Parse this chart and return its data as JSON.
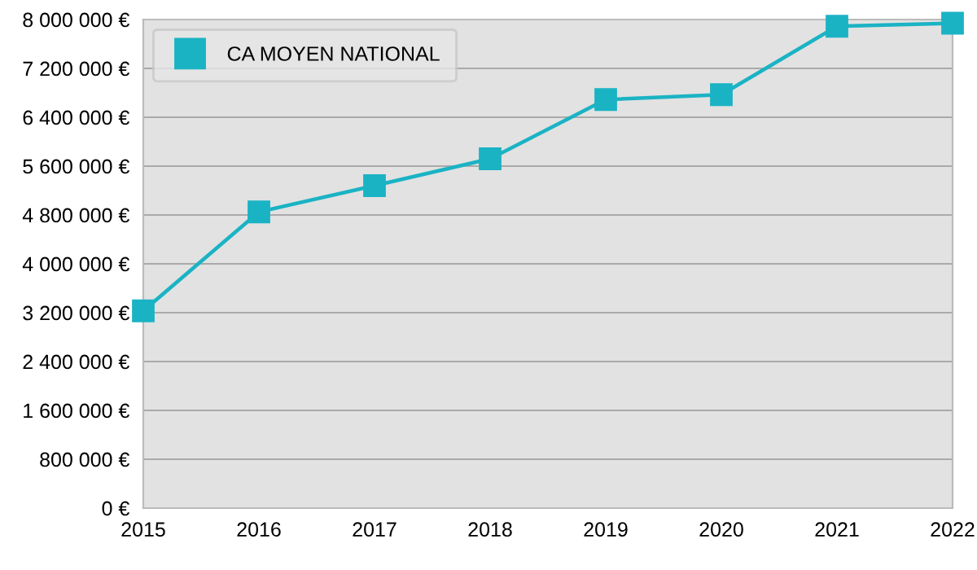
{
  "chart_data": {
    "type": "line",
    "x": [
      2015,
      2016,
      2017,
      2018,
      2019,
      2020,
      2021,
      2022
    ],
    "series": [
      {
        "name": "CA MOYEN NATIONAL",
        "color": "#1ab3c4",
        "values": [
          3230000,
          4850000,
          5280000,
          5720000,
          6690000,
          6770000,
          7890000,
          7940000
        ]
      }
    ],
    "xlim": [
      2015,
      2022
    ],
    "xticks": [
      2015,
      2016,
      2017,
      2018,
      2019,
      2020,
      2021,
      2022
    ],
    "ylim": [
      0,
      8000000
    ],
    "yticks": [
      {
        "value": 0,
        "label": "0 €"
      },
      {
        "value": 800000,
        "label": "800 000 €"
      },
      {
        "value": 1600000,
        "label": "1 600 000 €"
      },
      {
        "value": 2400000,
        "label": "2 400 000 €"
      },
      {
        "value": 3200000,
        "label": "3 200 000 €"
      },
      {
        "value": 4000000,
        "label": "4 000 000 €"
      },
      {
        "value": 4800000,
        "label": "4 800 000 €"
      },
      {
        "value": 5600000,
        "label": "5 600 000 €"
      },
      {
        "value": 6400000,
        "label": "6 400 000 €"
      },
      {
        "value": 7200000,
        "label": "7 200 000 €"
      },
      {
        "value": 8000000,
        "label": "8 000 000 €"
      }
    ],
    "grid": "y",
    "legend": "top left",
    "marker": "square",
    "line_style": "solid"
  }
}
